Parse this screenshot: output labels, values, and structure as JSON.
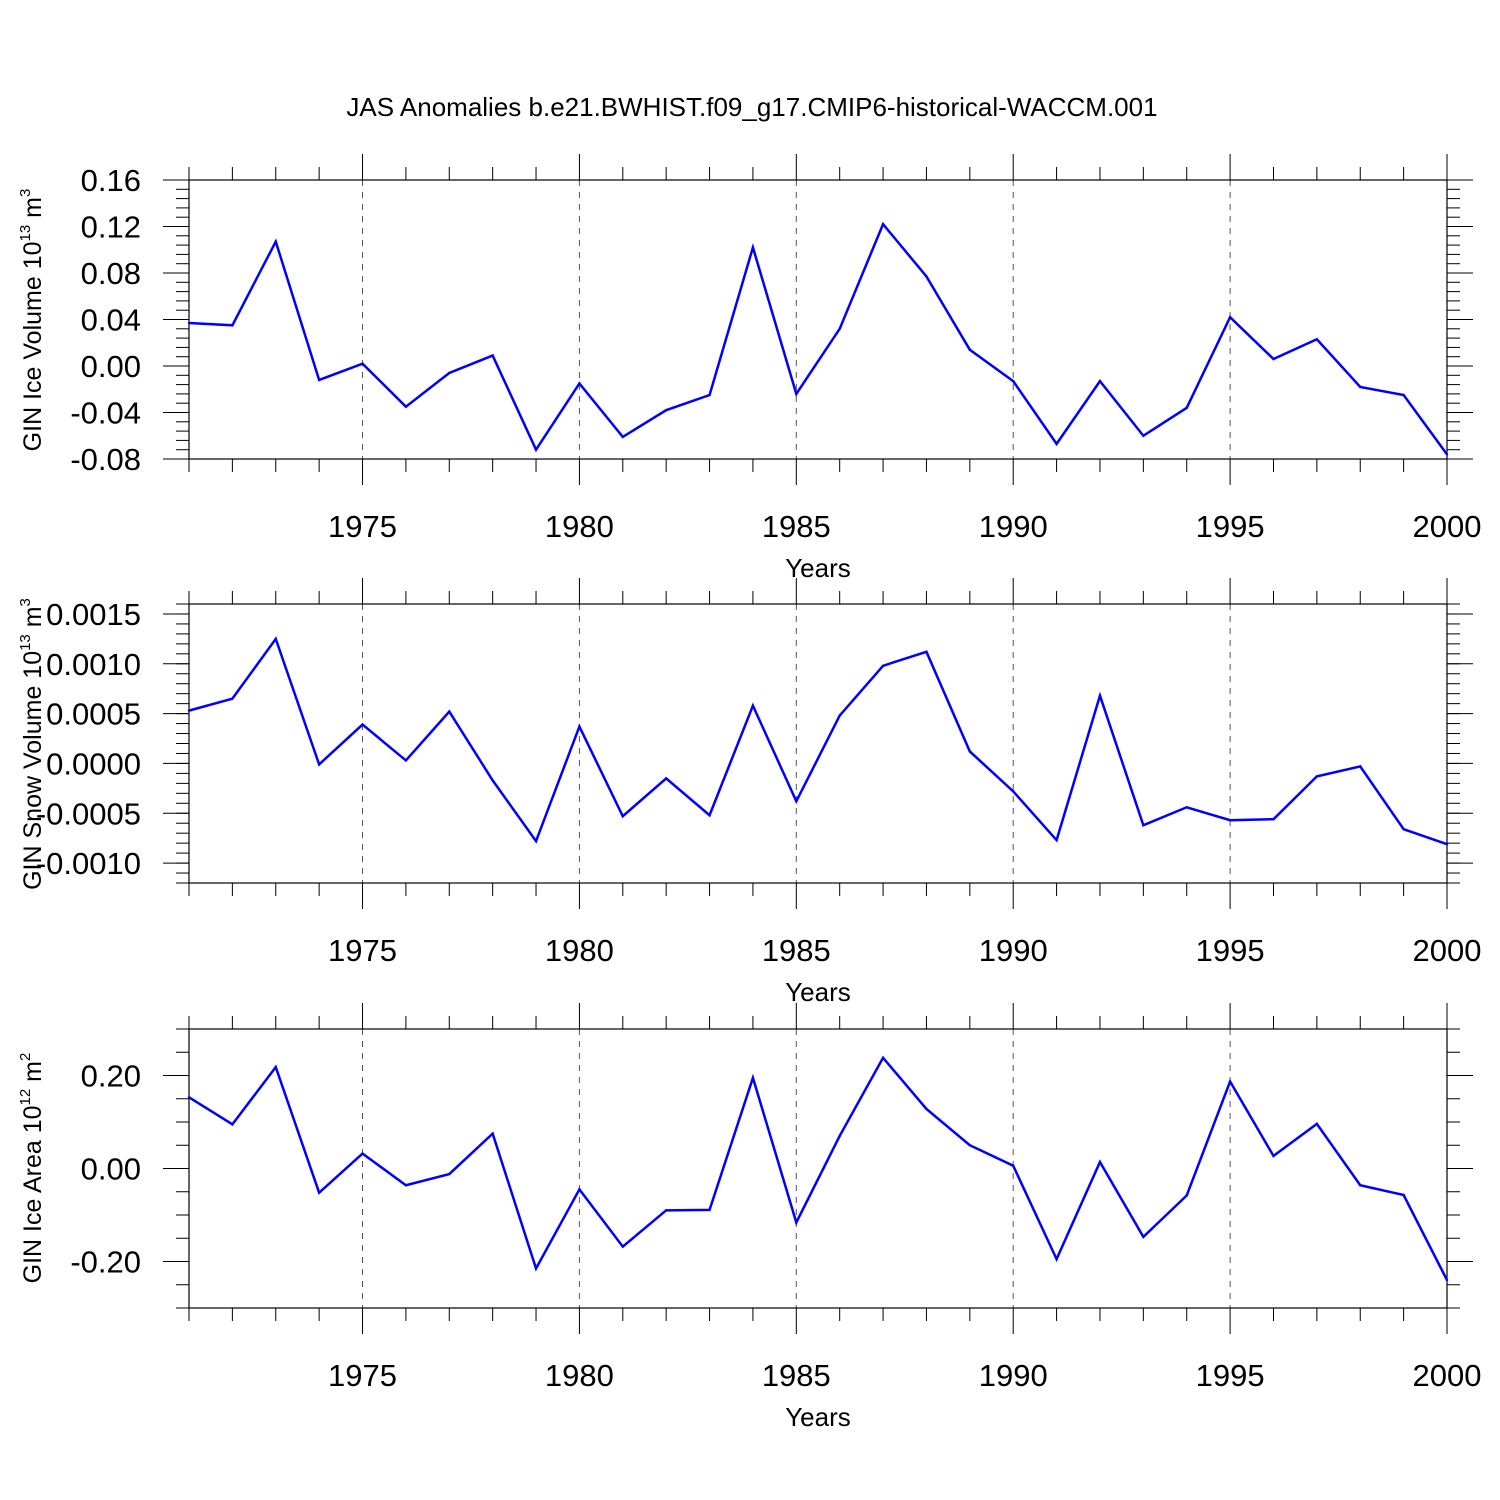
{
  "title": "JAS Anomalies b.e21.BWHIST.f09_g17.CMIP6-historical-WACCM.001",
  "colors": {
    "line": "#0000ff",
    "axis": "#000000",
    "grid": "#555555"
  },
  "chart_data": [
    {
      "type": "line",
      "ylabel_main": "GIN Ice Volume 10",
      "ylabel_exp": "13",
      "ylabel_unit": " m",
      "ylabel_unit_exp": "3",
      "xlabel": "Years",
      "xlim": [
        1971,
        2000
      ],
      "ylim": [
        -0.08,
        0.16
      ],
      "yticks": [
        -0.08,
        -0.04,
        0.0,
        0.04,
        0.08,
        0.12,
        0.16
      ],
      "ytick_labels": [
        "-0.08",
        "-0.04",
        "0.00",
        "0.04",
        "0.08",
        "0.12",
        "0.16"
      ],
      "yminor_step": 0.008,
      "xticks": [
        1975,
        1980,
        1985,
        1990,
        1995,
        2000
      ],
      "xtick_labels": [
        "1975",
        "1980",
        "1985",
        "1990",
        "1995",
        "2000"
      ],
      "grid": "vertical dashed at major x ticks",
      "x": [
        1971,
        1972,
        1973,
        1974,
        1975,
        1976,
        1977,
        1978,
        1979,
        1980,
        1981,
        1982,
        1983,
        1984,
        1985,
        1986,
        1987,
        1988,
        1989,
        1990,
        1991,
        1992,
        1993,
        1994,
        1995,
        1996,
        1997,
        1998,
        1999,
        2000
      ],
      "values": [
        0.037,
        0.035,
        0.107,
        -0.012,
        0.002,
        -0.035,
        -0.006,
        0.009,
        -0.072,
        -0.015,
        -0.061,
        -0.038,
        -0.025,
        0.102,
        -0.024,
        0.032,
        0.122,
        0.077,
        0.014,
        -0.013,
        -0.067,
        -0.013,
        -0.06,
        -0.036,
        0.042,
        0.006,
        0.023,
        -0.018,
        -0.025,
        -0.076
      ]
    },
    {
      "type": "line",
      "ylabel_main": "GIN Snow Volume 10",
      "ylabel_exp": "13",
      "ylabel_unit": " m",
      "ylabel_unit_exp": "3",
      "xlabel": "Years",
      "xlim": [
        1971,
        2000
      ],
      "ylim": [
        -0.0012,
        0.0016
      ],
      "yticks": [
        -0.001,
        -0.0005,
        0.0,
        0.0005,
        0.001,
        0.0015
      ],
      "ytick_labels": [
        "-0.0010",
        "-0.0005",
        "0.0000",
        "0.0005",
        "0.0010",
        "0.0015"
      ],
      "yminor_step": 0.0001,
      "xticks": [
        1975,
        1980,
        1985,
        1990,
        1995,
        2000
      ],
      "xtick_labels": [
        "1975",
        "1980",
        "1985",
        "1990",
        "1995",
        "2000"
      ],
      "grid": "vertical dashed at major x ticks",
      "x": [
        1971,
        1972,
        1973,
        1974,
        1975,
        1976,
        1977,
        1978,
        1979,
        1980,
        1981,
        1982,
        1983,
        1984,
        1985,
        1986,
        1987,
        1988,
        1989,
        1990,
        1991,
        1992,
        1993,
        1994,
        1995,
        1996,
        1997,
        1998,
        1999,
        2000
      ],
      "values": [
        0.00053,
        0.00065,
        0.00125,
        -1e-05,
        0.00039,
        3e-05,
        0.00052,
        -0.00017,
        -0.00078,
        0.00037,
        -0.00053,
        -0.00015,
        -0.00052,
        0.00058,
        -0.00038,
        0.00048,
        0.00098,
        0.00112,
        0.00012,
        -0.00028,
        -0.00077,
        0.00068,
        -0.00062,
        -0.00044,
        -0.00057,
        -0.00056,
        -0.00013,
        -3e-05,
        -0.00066,
        -0.00081
      ]
    },
    {
      "type": "line",
      "ylabel_main": "GIN Ice Area 10",
      "ylabel_exp": "12",
      "ylabel_unit": " m",
      "ylabel_unit_exp": "2",
      "xlabel": "Years",
      "xlim": [
        1971,
        2000
      ],
      "ylim": [
        -0.3,
        0.3
      ],
      "yticks": [
        -0.2,
        0.0,
        0.2
      ],
      "ytick_labels": [
        "-0.20",
        "0.00",
        "0.20"
      ],
      "yminor_step": 0.05,
      "xticks": [
        1975,
        1980,
        1985,
        1990,
        1995,
        2000
      ],
      "xtick_labels": [
        "1975",
        "1980",
        "1985",
        "1990",
        "1995",
        "2000"
      ],
      "grid": "vertical dashed at major x ticks",
      "x": [
        1971,
        1972,
        1973,
        1974,
        1975,
        1976,
        1977,
        1978,
        1979,
        1980,
        1981,
        1982,
        1983,
        1984,
        1985,
        1986,
        1987,
        1988,
        1989,
        1990,
        1991,
        1992,
        1993,
        1994,
        1995,
        1996,
        1997,
        1998,
        1999,
        2000
      ],
      "values": [
        0.153,
        0.095,
        0.218,
        -0.052,
        0.032,
        -0.036,
        -0.012,
        0.075,
        -0.215,
        -0.045,
        -0.168,
        -0.09,
        -0.089,
        0.195,
        -0.116,
        0.07,
        0.238,
        0.128,
        0.05,
        0.006,
        -0.195,
        0.014,
        -0.147,
        -0.058,
        0.187,
        0.027,
        0.096,
        -0.036,
        -0.057,
        -0.24
      ]
    }
  ]
}
